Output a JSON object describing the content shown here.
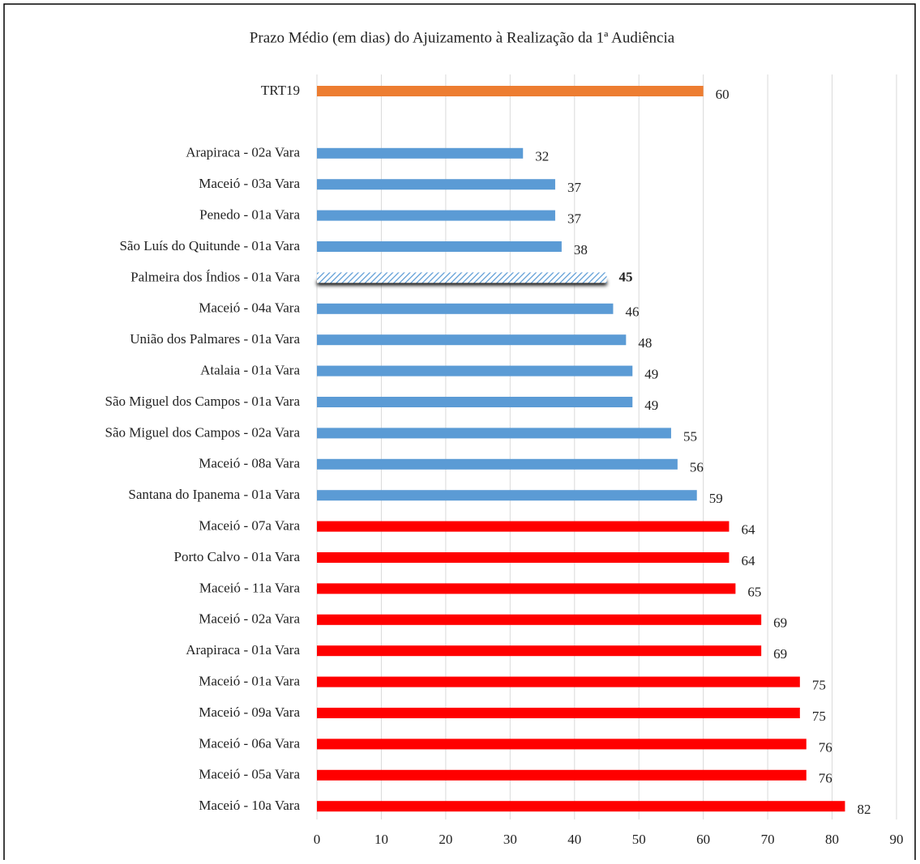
{
  "chart_data": {
    "type": "barh",
    "title": "Prazo Médio (em dias) do Ajuizamento à Realização da 1ª Audiência",
    "categories": [
      "TRT19",
      null,
      "Arapiraca - 02a Vara",
      "Maceió - 03a Vara",
      "Penedo - 01a Vara",
      "São Luís do Quitunde - 01a Vara",
      "Palmeira dos Índios - 01a Vara",
      "Maceió - 04a Vara",
      "União dos Palmares - 01a Vara",
      "Atalaia - 01a Vara",
      "São Miguel dos Campos - 01a Vara",
      "São Miguel dos Campos - 02a Vara",
      "Maceió - 08a Vara",
      "Santana do Ipanema - 01a Vara",
      "Maceió - 07a Vara",
      "Porto Calvo - 01a Vara",
      "Maceió - 11a Vara",
      "Maceió - 02a Vara",
      "Arapiraca - 01a Vara",
      "Maceió - 01a Vara",
      "Maceió - 09a Vara",
      "Maceió - 06a Vara",
      "Maceió - 05a Vara",
      "Maceió - 10a Vara"
    ],
    "values": [
      60,
      null,
      32,
      37,
      37,
      38,
      45,
      46,
      48,
      49,
      49,
      55,
      56,
      59,
      64,
      64,
      65,
      69,
      69,
      75,
      75,
      76,
      76,
      82
    ],
    "colors": [
      "#ed7d31",
      null,
      "#5b9bd5",
      "#5b9bd5",
      "#5b9bd5",
      "#5b9bd5",
      "#5b9bd5",
      "#5b9bd5",
      "#5b9bd5",
      "#5b9bd5",
      "#5b9bd5",
      "#5b9bd5",
      "#5b9bd5",
      "#5b9bd5",
      "#ff0000",
      "#ff0000",
      "#ff0000",
      "#ff0000",
      "#ff0000",
      "#ff0000",
      "#ff0000",
      "#ff0000",
      "#ff0000",
      "#ff0000"
    ],
    "highlight": 6,
    "xlim": [
      0,
      90
    ],
    "xticks": [
      0,
      10,
      20,
      30,
      40,
      50,
      60,
      70,
      80,
      90
    ],
    "grid": true
  }
}
